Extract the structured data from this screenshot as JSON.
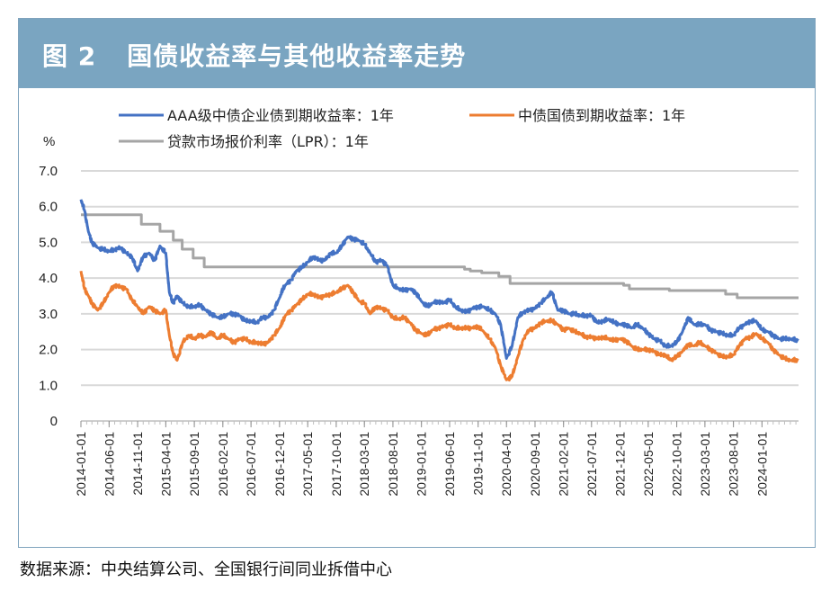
{
  "figure": {
    "number": "图 2",
    "title": "国债收益率与其他收益率走势",
    "source": "数据来源：中央结算公司、全国银行间同业拆借中心"
  },
  "chart_data": {
    "type": "line",
    "title": "国债收益率与其他收益率走势",
    "ylabel": "%",
    "ylim": [
      0,
      7.0
    ],
    "yticks": [
      0,
      1.0,
      2.0,
      3.0,
      4.0,
      5.0,
      6.0,
      7.0
    ],
    "ytick_labels": [
      "0",
      "1.0",
      "2.0",
      "3.0",
      "4.0",
      "5.0",
      "6.0",
      "7.0"
    ],
    "grid": true,
    "legend_position": "top",
    "x_range": [
      "2014-01-01",
      "2024-07-15"
    ],
    "x_ticks": [
      "2014-01-01",
      "2014-06-01",
      "2014-11-01",
      "2015-04-01",
      "2015-09-01",
      "2016-02-01",
      "2016-07-01",
      "2016-12-01",
      "2017-05-01",
      "2017-10-01",
      "2018-03-01",
      "2018-08-01",
      "2019-01-01",
      "2019-06-01",
      "2019-11-01",
      "2020-04-01",
      "2020-09-01",
      "2021-02-01",
      "2021-07-01",
      "2021-12-01",
      "2022-05-01",
      "2022-10-01",
      "2023-03-01",
      "2023-08-01",
      "2024-01-01"
    ],
    "series": [
      {
        "name": "AAA级中债企业债到期收益率：1年",
        "color": "#4472c4",
        "x": [
          "2014-01-01",
          "2014-01-20",
          "2014-02-10",
          "2014-03-01",
          "2014-04-01",
          "2014-05-01",
          "2014-06-01",
          "2014-07-01",
          "2014-08-01",
          "2014-09-01",
          "2014-10-01",
          "2014-11-01",
          "2014-12-01",
          "2015-01-01",
          "2015-02-01",
          "2015-03-01",
          "2015-04-01",
          "2015-04-20",
          "2015-05-10",
          "2015-06-01",
          "2015-07-01",
          "2015-08-01",
          "2015-09-01",
          "2015-10-01",
          "2015-11-01",
          "2015-12-01",
          "2016-01-01",
          "2016-02-01",
          "2016-03-01",
          "2016-04-01",
          "2016-05-01",
          "2016-06-01",
          "2016-07-01",
          "2016-08-01",
          "2016-09-01",
          "2016-10-01",
          "2016-11-01",
          "2016-12-01",
          "2016-12-20",
          "2017-01-01",
          "2017-02-01",
          "2017-03-01",
          "2017-04-01",
          "2017-05-01",
          "2017-06-01",
          "2017-07-01",
          "2017-08-01",
          "2017-09-01",
          "2017-10-01",
          "2017-11-01",
          "2017-12-01",
          "2018-01-01",
          "2018-02-01",
          "2018-03-01",
          "2018-04-01",
          "2018-05-01",
          "2018-06-01",
          "2018-07-01",
          "2018-08-01",
          "2018-09-01",
          "2018-10-01",
          "2018-11-01",
          "2018-12-01",
          "2019-01-01",
          "2019-02-01",
          "2019-03-01",
          "2019-04-01",
          "2019-05-01",
          "2019-06-01",
          "2019-07-01",
          "2019-08-01",
          "2019-09-01",
          "2019-10-01",
          "2019-11-01",
          "2019-12-01",
          "2020-01-01",
          "2020-02-01",
          "2020-03-01",
          "2020-04-01",
          "2020-05-01",
          "2020-06-01",
          "2020-07-01",
          "2020-08-01",
          "2020-09-01",
          "2020-10-01",
          "2020-11-01",
          "2020-12-01",
          "2021-01-01",
          "2021-02-01",
          "2021-03-01",
          "2021-04-01",
          "2021-05-01",
          "2021-06-01",
          "2021-07-01",
          "2021-08-01",
          "2021-09-01",
          "2021-10-01",
          "2021-11-01",
          "2021-12-01",
          "2022-01-01",
          "2022-02-01",
          "2022-03-01",
          "2022-04-01",
          "2022-05-01",
          "2022-06-01",
          "2022-07-01",
          "2022-08-01",
          "2022-09-01",
          "2022-10-01",
          "2022-11-01",
          "2022-12-01",
          "2023-01-01",
          "2023-02-01",
          "2023-03-01",
          "2023-04-01",
          "2023-05-01",
          "2023-06-01",
          "2023-07-01",
          "2023-08-01",
          "2023-09-01",
          "2023-10-01",
          "2023-11-01",
          "2023-12-01",
          "2024-01-01",
          "2024-02-01",
          "2024-03-01",
          "2024-04-01",
          "2024-05-01",
          "2024-06-01",
          "2024-07-15"
        ],
        "values": [
          6.2,
          5.9,
          5.3,
          5.0,
          4.85,
          4.8,
          4.75,
          4.8,
          4.85,
          4.7,
          4.6,
          4.2,
          4.6,
          4.7,
          4.5,
          4.9,
          4.7,
          3.6,
          3.3,
          3.5,
          3.3,
          3.2,
          3.2,
          3.25,
          3.1,
          3.0,
          2.9,
          2.9,
          3.0,
          3.0,
          2.95,
          2.8,
          2.8,
          2.75,
          2.9,
          2.9,
          3.1,
          3.45,
          3.7,
          3.8,
          3.95,
          4.2,
          4.3,
          4.45,
          4.6,
          4.5,
          4.5,
          4.7,
          4.7,
          4.9,
          5.15,
          5.1,
          5.05,
          4.95,
          4.7,
          4.45,
          4.5,
          4.35,
          3.8,
          3.7,
          3.65,
          3.7,
          3.6,
          3.35,
          3.2,
          3.3,
          3.35,
          3.3,
          3.4,
          3.2,
          3.1,
          3.05,
          3.15,
          3.2,
          3.2,
          3.1,
          3.0,
          2.7,
          1.75,
          2.1,
          2.9,
          3.05,
          3.1,
          3.15,
          3.3,
          3.45,
          3.6,
          3.1,
          3.1,
          3.0,
          3.0,
          2.95,
          2.95,
          2.95,
          2.75,
          2.8,
          2.85,
          2.75,
          2.7,
          2.7,
          2.6,
          2.7,
          2.6,
          2.45,
          2.3,
          2.25,
          2.1,
          2.1,
          2.2,
          2.5,
          2.9,
          2.7,
          2.7,
          2.7,
          2.55,
          2.5,
          2.45,
          2.4,
          2.4,
          2.6,
          2.7,
          2.8,
          2.8,
          2.55,
          2.5,
          2.4,
          2.3,
          2.3,
          2.3,
          2.25
        ]
      },
      {
        "name": "中债国债到期收益率：1年",
        "color": "#ed7d31",
        "x": [
          "2014-01-01",
          "2014-01-20",
          "2014-02-10",
          "2014-03-01",
          "2014-04-01",
          "2014-05-01",
          "2014-06-01",
          "2014-07-01",
          "2014-08-01",
          "2014-09-01",
          "2014-10-01",
          "2014-11-01",
          "2014-12-01",
          "2015-01-01",
          "2015-02-01",
          "2015-03-01",
          "2015-04-01",
          "2015-04-20",
          "2015-05-10",
          "2015-06-01",
          "2015-07-01",
          "2015-08-01",
          "2015-09-01",
          "2015-10-01",
          "2015-11-01",
          "2015-12-01",
          "2016-01-01",
          "2016-02-01",
          "2016-03-01",
          "2016-04-01",
          "2016-05-01",
          "2016-06-01",
          "2016-07-01",
          "2016-08-01",
          "2016-09-01",
          "2016-10-01",
          "2016-11-01",
          "2016-12-01",
          "2016-12-20",
          "2017-01-01",
          "2017-02-01",
          "2017-03-01",
          "2017-04-01",
          "2017-05-01",
          "2017-06-01",
          "2017-07-01",
          "2017-08-01",
          "2017-09-01",
          "2017-10-01",
          "2017-11-01",
          "2017-12-01",
          "2018-01-01",
          "2018-02-01",
          "2018-03-01",
          "2018-04-01",
          "2018-05-01",
          "2018-06-01",
          "2018-07-01",
          "2018-08-01",
          "2018-09-01",
          "2018-10-01",
          "2018-11-01",
          "2018-12-01",
          "2019-01-01",
          "2019-02-01",
          "2019-03-01",
          "2019-04-01",
          "2019-05-01",
          "2019-06-01",
          "2019-07-01",
          "2019-08-01",
          "2019-09-01",
          "2019-10-01",
          "2019-11-01",
          "2019-12-01",
          "2020-01-01",
          "2020-02-01",
          "2020-03-01",
          "2020-04-01",
          "2020-05-01",
          "2020-06-01",
          "2020-07-01",
          "2020-08-01",
          "2020-09-01",
          "2020-10-01",
          "2020-11-01",
          "2020-12-01",
          "2021-01-01",
          "2021-02-01",
          "2021-03-01",
          "2021-04-01",
          "2021-05-01",
          "2021-06-01",
          "2021-07-01",
          "2021-08-01",
          "2021-09-01",
          "2021-10-01",
          "2021-11-01",
          "2021-12-01",
          "2022-01-01",
          "2022-02-01",
          "2022-03-01",
          "2022-04-01",
          "2022-05-01",
          "2022-06-01",
          "2022-07-01",
          "2022-08-01",
          "2022-09-01",
          "2022-10-01",
          "2022-11-01",
          "2022-12-01",
          "2023-01-01",
          "2023-02-01",
          "2023-03-01",
          "2023-04-01",
          "2023-05-01",
          "2023-06-01",
          "2023-07-01",
          "2023-08-01",
          "2023-09-01",
          "2023-10-01",
          "2023-11-01",
          "2023-12-01",
          "2024-01-01",
          "2024-02-01",
          "2024-03-01",
          "2024-04-01",
          "2024-05-01",
          "2024-06-01",
          "2024-07-15"
        ],
        "values": [
          4.2,
          3.7,
          3.5,
          3.3,
          3.1,
          3.3,
          3.6,
          3.8,
          3.75,
          3.7,
          3.4,
          3.2,
          3.0,
          3.2,
          3.1,
          3.0,
          3.1,
          2.4,
          1.9,
          1.7,
          2.2,
          2.4,
          2.3,
          2.4,
          2.35,
          2.5,
          2.3,
          2.4,
          2.3,
          2.2,
          2.3,
          2.3,
          2.2,
          2.2,
          2.15,
          2.2,
          2.4,
          2.6,
          2.8,
          2.95,
          3.1,
          3.25,
          3.4,
          3.55,
          3.55,
          3.45,
          3.5,
          3.55,
          3.6,
          3.7,
          3.8,
          3.6,
          3.35,
          3.3,
          3.0,
          3.2,
          3.15,
          3.1,
          2.9,
          2.85,
          2.9,
          2.75,
          2.55,
          2.45,
          2.4,
          2.55,
          2.6,
          2.65,
          2.7,
          2.6,
          2.6,
          2.6,
          2.6,
          2.65,
          2.5,
          2.3,
          2.05,
          1.55,
          1.15,
          1.25,
          1.8,
          2.3,
          2.55,
          2.6,
          2.75,
          2.8,
          2.8,
          2.7,
          2.55,
          2.6,
          2.5,
          2.45,
          2.35,
          2.35,
          2.3,
          2.35,
          2.3,
          2.25,
          2.3,
          2.25,
          2.1,
          2.0,
          2.0,
          2.0,
          1.95,
          1.85,
          1.85,
          1.7,
          1.8,
          1.95,
          2.15,
          2.1,
          2.2,
          2.1,
          2.0,
          1.9,
          1.8,
          1.8,
          1.85,
          2.1,
          2.3,
          2.35,
          2.45,
          2.3,
          2.2,
          2.0,
          1.85,
          1.75,
          1.7,
          1.7
        ]
      },
      {
        "name": "贷款市场报价利率（LPR）：1年",
        "color": "#a5a5a5",
        "x": [
          "2014-01-01",
          "2014-11-21",
          "2015-03-01",
          "2015-05-11",
          "2015-06-28",
          "2015-08-26",
          "2015-10-24",
          "2019-08-20",
          "2019-09-20",
          "2019-11-20",
          "2020-02-20",
          "2020-04-20",
          "2021-12-20",
          "2022-01-20",
          "2022-08-22",
          "2023-06-20",
          "2023-08-21",
          "2024-07-15"
        ],
        "values": [
          5.77,
          5.51,
          5.31,
          5.06,
          4.81,
          4.56,
          4.31,
          4.25,
          4.2,
          4.15,
          4.05,
          3.85,
          3.8,
          3.7,
          3.65,
          3.55,
          3.45,
          3.45
        ]
      }
    ]
  }
}
